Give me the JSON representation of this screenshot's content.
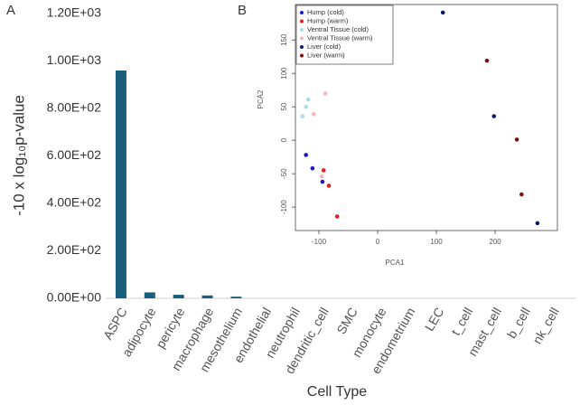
{
  "chart_data": [
    {
      "type": "bar",
      "panel_label": "A",
      "y_label": "-10 x log₁₀p-value",
      "x_label": "Cell Type",
      "categories": [
        "ASPC",
        "adipocyte",
        "pericyte",
        "macrophage",
        "mesothelium",
        "endothelial",
        "neutrophil",
        "dendritic_cell",
        "SMC",
        "monocyte",
        "endometrium",
        "LEC",
        "t_cell",
        "mast_cell",
        "b_cell",
        "nk_cell"
      ],
      "values": [
        960,
        25,
        15,
        12,
        7,
        0,
        0,
        0,
        0,
        0,
        0,
        0,
        0,
        0,
        0,
        0
      ],
      "color": "#1b5e7b",
      "ylim": [
        0,
        1200
      ],
      "yticks": [
        {
          "value": 0,
          "label": "0.00E+00"
        },
        {
          "value": 200,
          "label": "2.00E+02"
        },
        {
          "value": 400,
          "label": "4.00E+02"
        },
        {
          "value": 600,
          "label": "6.00E+02"
        },
        {
          "value": 800,
          "label": "8.00E+02"
        },
        {
          "value": 1000,
          "label": "1.00E+03"
        },
        {
          "value": 1200,
          "label": "1.20E+03"
        }
      ]
    },
    {
      "type": "scatter",
      "panel_label": "B",
      "x_label": "PCA1",
      "y_label": "PCA2",
      "xlim": [
        -140,
        306
      ],
      "ylim": [
        -135,
        203
      ],
      "xticks": [
        -100,
        0,
        100,
        200
      ],
      "yticks": [
        -100,
        -50,
        0,
        50,
        100,
        150
      ],
      "legend": "top-left",
      "series": [
        {
          "name": "Hump (cold)",
          "color": "#1a1acc",
          "x": [
            -122,
            -111,
            -94
          ],
          "y": [
            -22,
            -42,
            -62
          ]
        },
        {
          "name": "Hump (warm)",
          "color": "#e02020",
          "x": [
            -92,
            -83,
            -69
          ],
          "y": [
            -45,
            -68,
            -114
          ]
        },
        {
          "name": "Ventral Tissue (cold)",
          "color": "#a8dce6",
          "x": [
            -122,
            -118,
            -128
          ],
          "y": [
            50,
            61,
            36
          ]
        },
        {
          "name": "Ventral Tissue (warm)",
          "color": "#f4b6c2",
          "x": [
            -89,
            -109,
            -95
          ],
          "y": [
            70,
            39,
            -54
          ]
        },
        {
          "name": "Liver (cold)",
          "color": "#0a1a6b",
          "x": [
            111,
            198,
            272
          ],
          "y": [
            191,
            36,
            -124
          ]
        },
        {
          "name": "Liver (warm)",
          "color": "#7a1010",
          "x": [
            186,
            237,
            245
          ],
          "y": [
            119,
            1,
            -81
          ]
        }
      ]
    }
  ]
}
